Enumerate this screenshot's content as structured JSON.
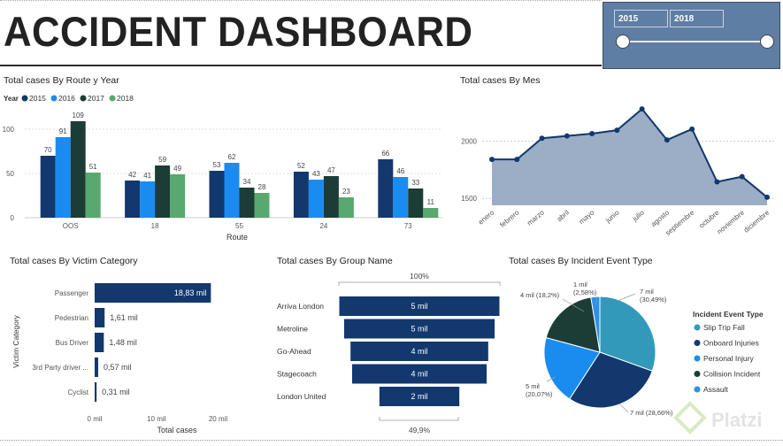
{
  "header": {
    "title": "ACCIDENT DASHBOARD"
  },
  "slicer": {
    "from": "2015",
    "to": "2018",
    "range": [
      2015,
      2018
    ]
  },
  "panels": {
    "route_year": {
      "title": "Total cases By Route y Year",
      "legend_label": "Year",
      "xlabel": "Route"
    },
    "mes": {
      "title": "Total cases By Mes"
    },
    "victim": {
      "title": "Total cases By Victim Category",
      "ylabel": "Victim Category",
      "xlabel": "Total cases"
    },
    "group": {
      "title": "Total cases By Group Name",
      "top_label": "100%",
      "bottom_label": "49,9%"
    },
    "incident": {
      "title": "Total cases By Incident Event Type",
      "legend_title": "Incident Event Type"
    }
  },
  "watermark": "Platzi",
  "colors": {
    "y2015": "#12386e",
    "y2016": "#1a8cf0",
    "y2017": "#1b3d35",
    "y2018": "#58a86f",
    "area_fill": "#9baec6",
    "line": "#12386e",
    "bar": "#12386e",
    "slip": "#3399bb"
  },
  "chart_data": [
    {
      "type": "bar",
      "title": "Total cases By Route y Year",
      "xlabel": "Route",
      "ylabel": "",
      "categories": [
        "OOS",
        "18",
        "55",
        "24",
        "73"
      ],
      "series": [
        {
          "name": "2015",
          "values": [
            70,
            42,
            53,
            52,
            66
          ]
        },
        {
          "name": "2016",
          "values": [
            91,
            41,
            62,
            43,
            46
          ]
        },
        {
          "name": "2017",
          "values": [
            109,
            59,
            34,
            47,
            33
          ]
        },
        {
          "name": "2018",
          "values": [
            51,
            49,
            28,
            23,
            11
          ]
        }
      ],
      "yticks": [
        "0",
        "50",
        "100"
      ],
      "ylim": [
        0,
        112
      ],
      "legend": "top-left"
    },
    {
      "type": "area",
      "title": "Total cases By Mes",
      "categories": [
        "enero",
        "febrero",
        "marzo",
        "abril",
        "mayo",
        "junio",
        "julio",
        "agosto",
        "septiembre",
        "octubre",
        "noviembre",
        "diciembre"
      ],
      "values": [
        1840,
        1840,
        2025,
        2045,
        2065,
        2095,
        2280,
        2010,
        2105,
        1645,
        1690,
        1510
      ],
      "yticks": [
        "1500",
        "2000"
      ],
      "ylim": [
        1440,
        2320
      ]
    },
    {
      "type": "bar",
      "title": "Total cases By Victim Category",
      "orientation": "horizontal",
      "categories": [
        "Passenger",
        "Pedestrian",
        "Bus Driver",
        "3rd Party driver ...",
        "Cyclist"
      ],
      "values": [
        18.83,
        1.61,
        1.48,
        0.57,
        0.31
      ],
      "value_labels": [
        "18,83 mil",
        "1,61 mil",
        "1,48 mil",
        "0,57 mil",
        "0,31 mil"
      ],
      "xticks": [
        "0 mil",
        "10 mil",
        "20 mil"
      ],
      "xlim": [
        0,
        22
      ],
      "xlabel": "Total cases",
      "ylabel": "Victim Category"
    },
    {
      "type": "bar",
      "title": "Total cases By Group Name",
      "orientation": "funnel",
      "categories": [
        "Arriva London",
        "Metroline",
        "Go-Ahead",
        "Stagecoach",
        "London United"
      ],
      "values": [
        1.0,
        0.94,
        0.86,
        0.84,
        0.499
      ],
      "value_labels": [
        "5 mil",
        "5 mil",
        "4 mil",
        "4 mil",
        "2 mil"
      ]
    },
    {
      "type": "pie",
      "title": "Total cases By Incident Event Type",
      "categories": [
        "Slip Trip Fall",
        "Onboard Injuries",
        "Personal Injury",
        "Collision Incident",
        "Assault"
      ],
      "values": [
        30.49,
        28.66,
        20.07,
        18.2,
        2.58
      ],
      "labels": [
        "7 mil\n(30,49%)",
        "7 mil (28,66%)",
        "5 mil\n(20,07%)",
        "4 mil (18,2%)",
        "1 mil\n(2,58%)"
      ],
      "colors": [
        "#3399bb",
        "#12386e",
        "#1a8cf0",
        "#1b3d35",
        "#2f8fe8"
      ],
      "legend": "right"
    }
  ]
}
